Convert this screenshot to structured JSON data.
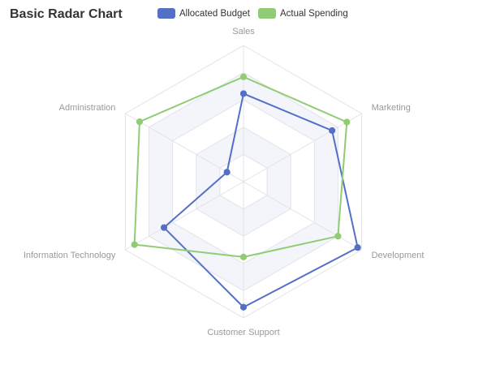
{
  "chart_data": {
    "type": "radar",
    "title": "Basic Radar Chart",
    "indicators": [
      {
        "name": "Sales",
        "max": 6500
      },
      {
        "name": "Marketing",
        "max": 16000
      },
      {
        "name": "Development",
        "max": 30000
      },
      {
        "name": "Customer Support",
        "max": 38000
      },
      {
        "name": "Information Technology",
        "max": 52000
      },
      {
        "name": "Administration",
        "max": 25000
      }
    ],
    "series": [
      {
        "name": "Allocated Budget",
        "color": "#5470c6",
        "values": [
          4200,
          12000,
          29000,
          35000,
          35000,
          3500
        ]
      },
      {
        "name": "Actual Spending",
        "color": "#91cc75",
        "values": [
          5000,
          14000,
          24000,
          21000,
          48000,
          22000
        ]
      }
    ],
    "legend_position": "top-center",
    "split_number": 5,
    "split_area": true
  }
}
